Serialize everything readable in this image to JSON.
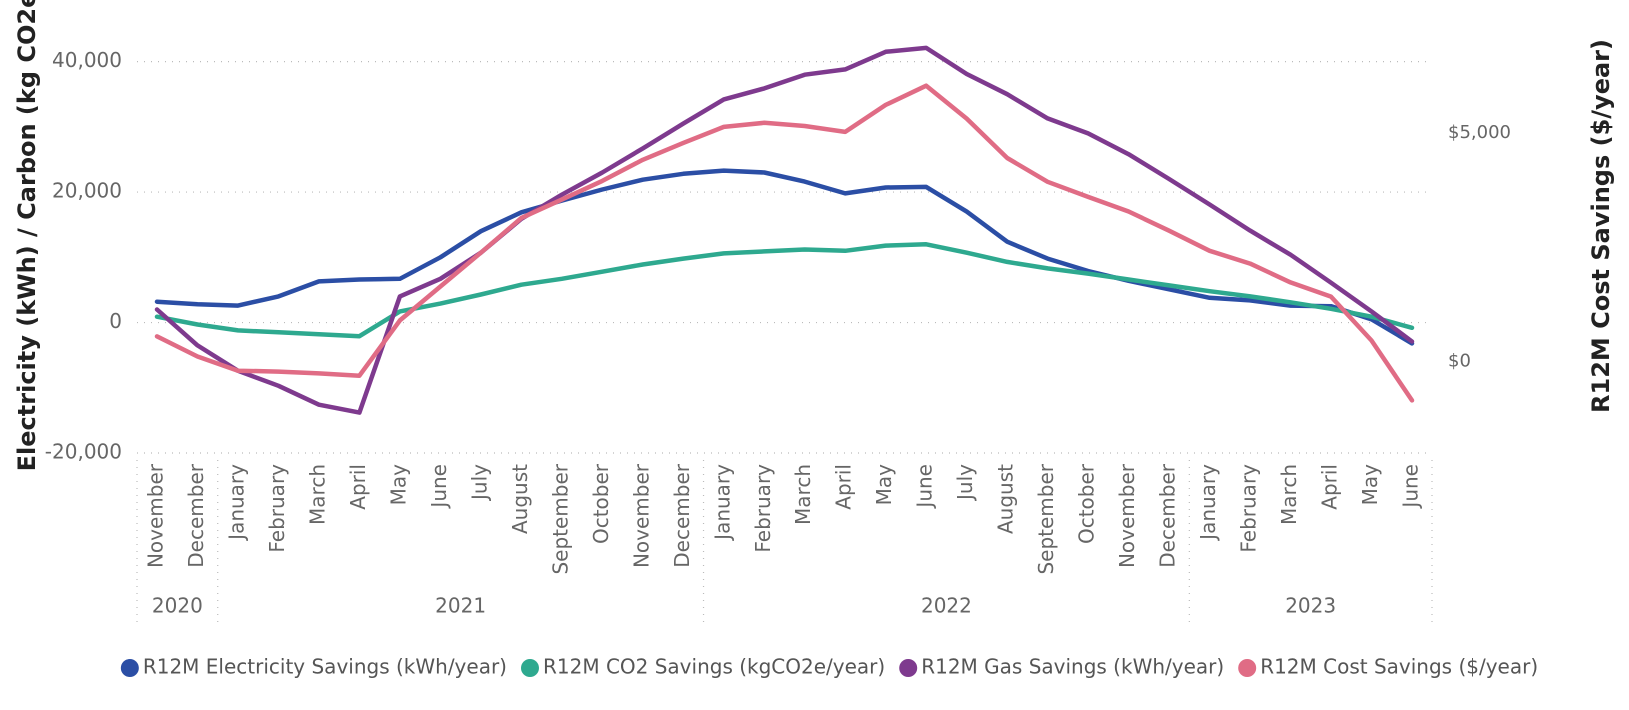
{
  "chart_data": {
    "type": "line",
    "y_title": "Electricity (kWh) / Carbon (kg CO2e)",
    "y2_title": "R12M Cost Savings ($/year)",
    "categories": [
      "November",
      "December",
      "January",
      "February",
      "March",
      "April",
      "May",
      "June",
      "July",
      "August",
      "September",
      "October",
      "November",
      "December",
      "January",
      "February",
      "March",
      "April",
      "May",
      "June",
      "July",
      "August",
      "September",
      "October",
      "November",
      "December",
      "January",
      "February",
      "March",
      "April",
      "May",
      "June"
    ],
    "category_groups": [
      {
        "label": "2020",
        "count": 2
      },
      {
        "label": "2021",
        "count": 12
      },
      {
        "label": "2022",
        "count": 12
      },
      {
        "label": "2023",
        "count": 6
      }
    ],
    "ylim": [
      -20000,
      45000
    ],
    "yticks": [
      {
        "value": -20000,
        "label": "-20,000"
      },
      0,
      {
        "value": 20000,
        "label": "20,000"
      },
      {
        "value": 40000,
        "label": "40,000"
      }
    ],
    "y2lim": [
      -2000,
      7270
    ],
    "y2ticks": [
      {
        "value": 0,
        "label": "$0"
      },
      {
        "value": 5000,
        "label": "$5,000"
      }
    ],
    "grid": true,
    "legend": "bottom",
    "series": [
      {
        "name": "R12M Electricity Savings (kWh/year)",
        "color": "#2B4EA5",
        "values": [
          3200,
          2800,
          2600,
          4000,
          6300,
          6600,
          6700,
          10000,
          14000,
          16900,
          18700,
          20400,
          21900,
          22800,
          23300,
          23000,
          21600,
          19800,
          20700,
          20800,
          17000,
          12400,
          9800,
          7900,
          6400,
          5100,
          3800,
          3400,
          2600,
          2500,
          500,
          -3200
        ]
      },
      {
        "name": "R12M CO2 Savings (kgCO2e/year)",
        "color": "#2EA98F",
        "values": [
          900,
          -300,
          -1200,
          -1500,
          -1800,
          -2100,
          1700,
          2900,
          4300,
          5800,
          6700,
          7800,
          8900,
          9800,
          10600,
          10900,
          11200,
          11000,
          11800,
          12000,
          10700,
          9300,
          8300,
          7500,
          6600,
          5700,
          4800,
          4000,
          3100,
          2100,
          900,
          -800
        ]
      },
      {
        "name": "R12M Gas Savings (kWh/year)",
        "color": "#7E3A8E",
        "values": [
          2000,
          -3500,
          -7400,
          -9700,
          -12600,
          -13800,
          4000,
          6700,
          10700,
          15900,
          19600,
          23000,
          26700,
          30500,
          34200,
          35900,
          38000,
          38800,
          41500,
          42100,
          38100,
          35000,
          31300,
          29000,
          25800,
          22000,
          18100,
          14100,
          10400,
          6100,
          1700,
          -2900
        ]
      },
      {
        "name": "R12M Cost Savings ($/year)",
        "color": "#E06C85",
        "axis": "y2",
        "values": [
          550,
          110,
          -200,
          -220,
          -260,
          -310,
          900,
          1640,
          2380,
          3140,
          3540,
          3950,
          4410,
          4780,
          5130,
          5220,
          5150,
          5020,
          5610,
          6030,
          5310,
          4450,
          3930,
          3600,
          3280,
          2860,
          2420,
          2140,
          1730,
          1420,
          460,
          -850
        ]
      }
    ]
  }
}
